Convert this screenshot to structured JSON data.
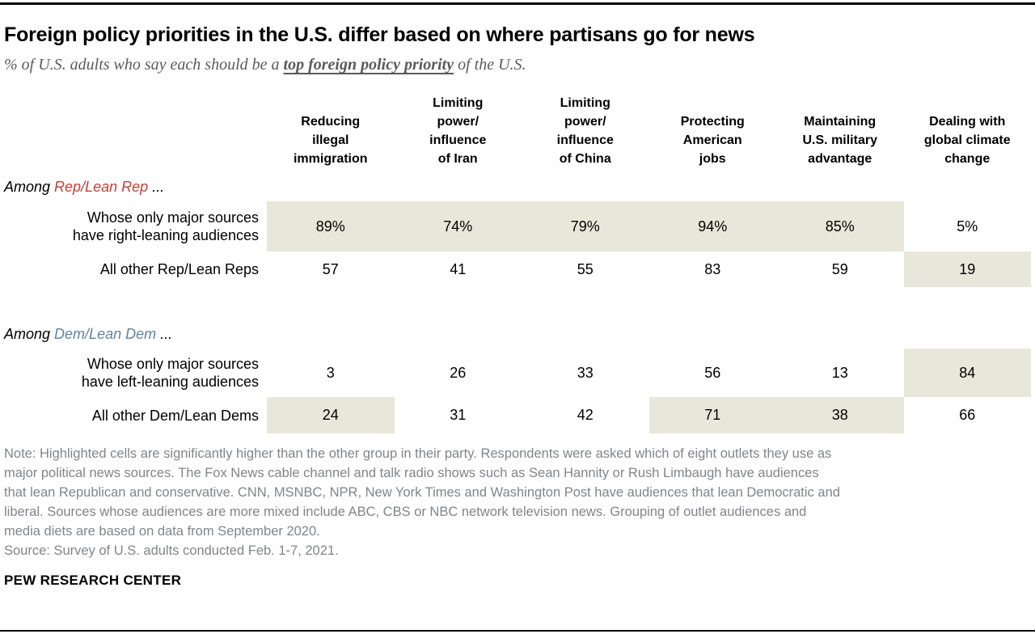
{
  "colors": {
    "highlight": "#e9e7d9",
    "rep_red": "#bf4238",
    "dem_blue": "#6184a0",
    "note_gray": "#828487",
    "subtitle_gray": "#5a5a5c"
  },
  "header": {
    "title": "Foreign policy priorities in the U.S. differ based on where partisans go for news",
    "subtitle_prefix": "% of U.S. adults who say each should be a ",
    "subtitle_emphasis": "top foreign policy priority",
    "subtitle_suffix": " of the U.S."
  },
  "table": {
    "columns": [
      "Reducing\nillegal\nimmigration",
      "Limiting\npower/\ninfluence\nof Iran",
      "Limiting\npower/\ninfluence\nof China",
      "Protecting\nAmerican\njobs",
      "Maintaining\nU.S. military\nadvantage",
      "Dealing with\nglobal climate\nchange"
    ],
    "groups": [
      {
        "prefix": "Among ",
        "party": "Rep/Lean Rep",
        "suffix": " ...",
        "rows": [
          {
            "label": "Whose only major sources\nhave right-leaning audiences",
            "values": [
              "89%",
              "74%",
              "79%",
              "94%",
              "85%",
              "5%"
            ],
            "highlighted": [
              true,
              true,
              true,
              true,
              true,
              false
            ]
          },
          {
            "label": "All other Rep/Lean Reps",
            "values": [
              "57",
              "41",
              "55",
              "83",
              "59",
              "19"
            ],
            "highlighted": [
              false,
              false,
              false,
              false,
              false,
              true
            ]
          }
        ]
      },
      {
        "prefix": "Among ",
        "party": "Dem/Lean Dem",
        "suffix": " ...",
        "rows": [
          {
            "label": "Whose only major sources\nhave left-leaning audiences",
            "values": [
              "3",
              "26",
              "33",
              "56",
              "13",
              "84"
            ],
            "highlighted": [
              false,
              false,
              false,
              false,
              false,
              true
            ]
          },
          {
            "label": "All other Dem/Lean Dems",
            "values": [
              "24",
              "31",
              "42",
              "71",
              "38",
              "66"
            ],
            "highlighted": [
              true,
              false,
              false,
              true,
              true,
              false
            ]
          }
        ]
      }
    ]
  },
  "footer": {
    "note": "Note: Highlighted cells are significantly higher than the other group in their party. Respondents were asked which of eight outlets they use as\nmajor political news sources. The Fox News cable channel and talk radio shows such as Sean Hannity or Rush Limbaugh have audiences\nthat lean Republican and conservative. CNN, MSNBC, NPR, New York Times and Washington Post have audiences that lean Democratic and\nliberal. Sources whose audiences are more mixed include ABC, CBS or NBC network television news. Grouping of outlet audiences and\nmedia diets are based on data from September 2020.",
    "source": "Source: Survey of U.S. adults conducted Feb. 1-7, 2021.",
    "brand": "PEW RESEARCH CENTER"
  },
  "chart_data": {
    "type": "table",
    "title": "Foreign policy priorities in the U.S. differ based on where partisans go for news",
    "subtitle": "% of U.S. adults who say each should be a top foreign policy priority of the U.S.",
    "categories": [
      "Reducing illegal immigration",
      "Limiting power/influence of Iran",
      "Limiting power/influence of China",
      "Protecting American jobs",
      "Maintaining U.S. military advantage",
      "Dealing with global climate change"
    ],
    "series": [
      {
        "name": "Rep/Lean Rep - Whose only major sources have right-leaning audiences",
        "values": [
          89,
          74,
          79,
          94,
          85,
          5
        ],
        "highlighted": [
          true,
          true,
          true,
          true,
          true,
          false
        ]
      },
      {
        "name": "Rep/Lean Rep - All other Rep/Lean Reps",
        "values": [
          57,
          41,
          55,
          83,
          59,
          19
        ],
        "highlighted": [
          false,
          false,
          false,
          false,
          false,
          true
        ]
      },
      {
        "name": "Dem/Lean Dem - Whose only major sources have left-leaning audiences",
        "values": [
          3,
          26,
          33,
          56,
          13,
          84
        ],
        "highlighted": [
          false,
          false,
          false,
          false,
          false,
          true
        ]
      },
      {
        "name": "Dem/Lean Dem - All other Dem/Lean Dems",
        "values": [
          24,
          31,
          42,
          71,
          38,
          66
        ],
        "highlighted": [
          true,
          false,
          false,
          true,
          true,
          false
        ]
      }
    ],
    "legend_position": "none",
    "grid": false,
    "note": "Highlighted cells are significantly higher than the other group in their party."
  }
}
